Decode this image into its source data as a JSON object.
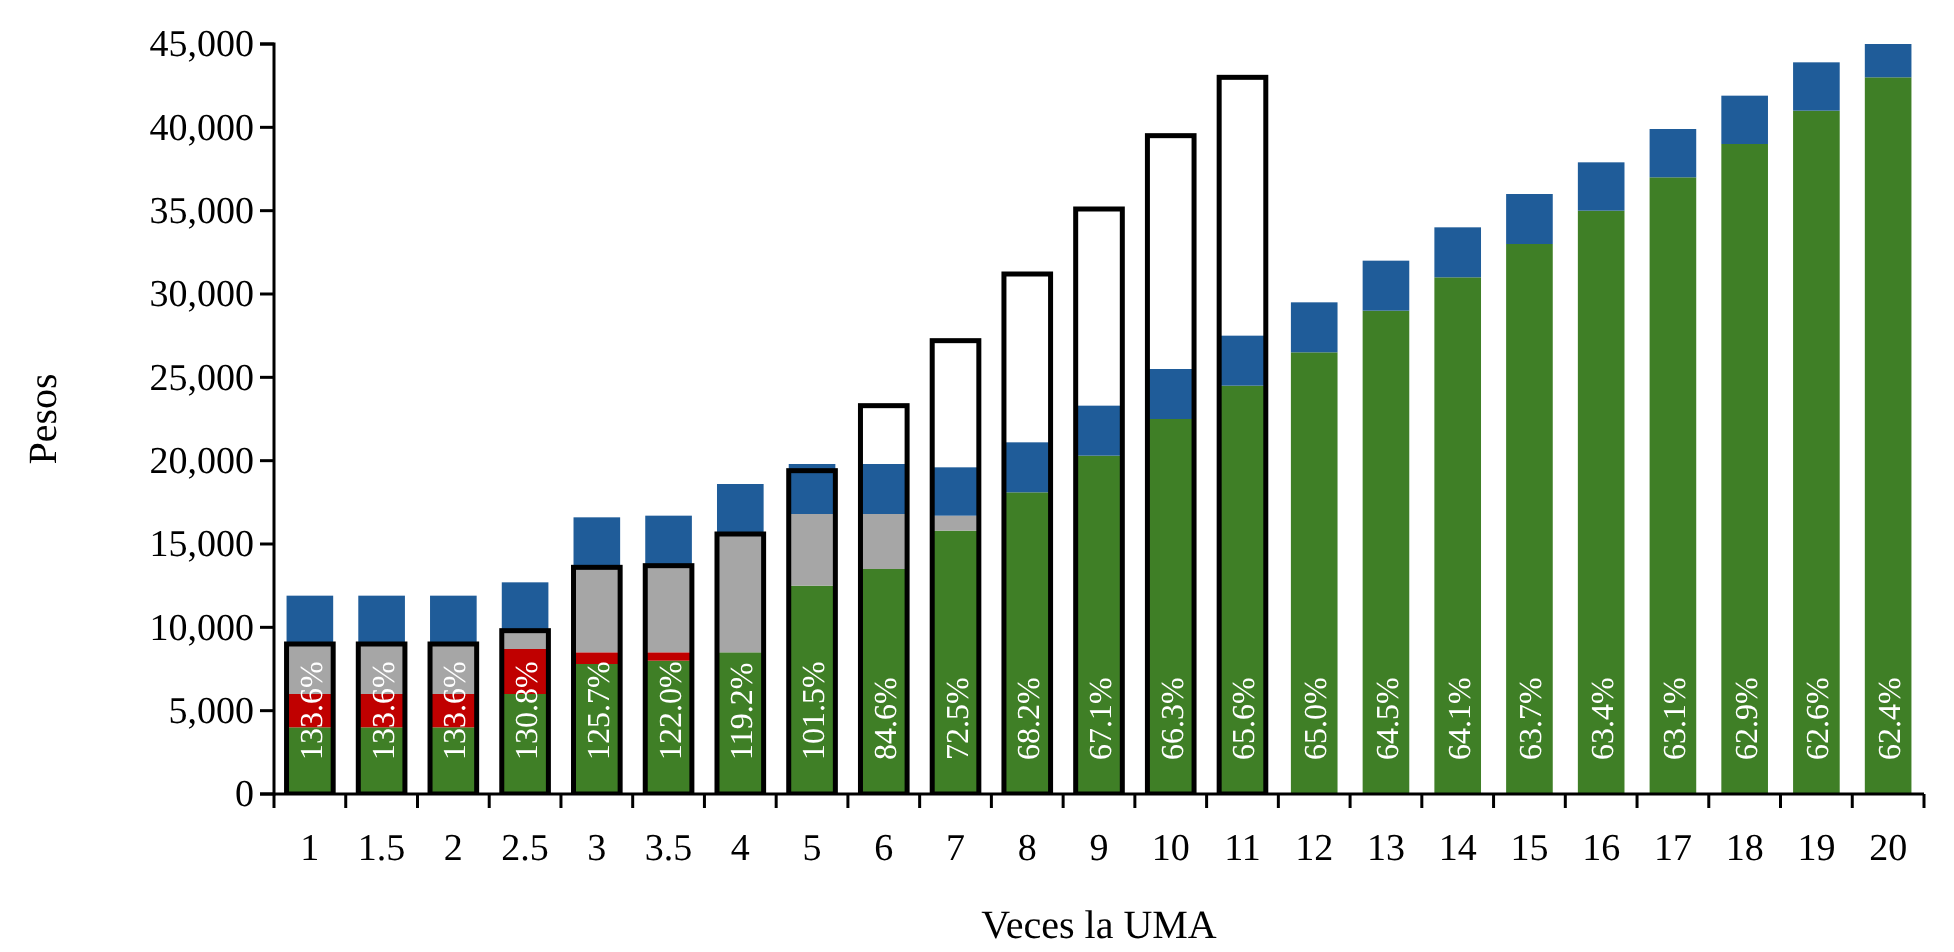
{
  "chart_data": [
    {
      "type": "bar",
      "stacked": true,
      "xlabel": "Veces la UMA",
      "ylabel": "Pesos",
      "categories": [
        "1",
        "1.5",
        "2",
        "2.5",
        "3",
        "3.5",
        "4",
        "5",
        "6",
        "7",
        "8",
        "9",
        "10",
        "11",
        "12",
        "13",
        "14",
        "15",
        "16",
        "17",
        "18",
        "19",
        "20"
      ],
      "ylim": [
        0,
        45000
      ],
      "yticks": [
        {
          "value": 0,
          "label": "0"
        },
        {
          "value": 5000,
          "label": "5,000"
        },
        {
          "value": 10000,
          "label": "10,000"
        },
        {
          "value": 15000,
          "label": "15,000"
        },
        {
          "value": 20000,
          "label": "20,000"
        },
        {
          "value": 25000,
          "label": "25,000"
        },
        {
          "value": 30000,
          "label": "30,000"
        },
        {
          "value": 35000,
          "label": "35,000"
        },
        {
          "value": 40000,
          "label": "40,000"
        },
        {
          "value": 45000,
          "label": "45,000"
        }
      ],
      "grid": false,
      "series": [
        {
          "color": "#3f7f26",
          "values": [
            4000,
            4000,
            4000,
            6000,
            7800,
            8000,
            8500,
            12500,
            13500,
            15800,
            18100,
            20300,
            22500,
            24500,
            26500,
            29000,
            31000,
            33000,
            35000,
            37000,
            39000,
            41000,
            43000
          ]
        },
        {
          "color": "#c00000",
          "values": [
            2000,
            2000,
            2000,
            2700,
            700,
            500,
            null,
            null,
            null,
            null,
            null,
            null,
            null,
            null,
            null,
            null,
            null,
            null,
            null,
            null,
            null,
            null,
            null
          ]
        },
        {
          "color": "#a6a6a6",
          "values": [
            3000,
            3000,
            3000,
            1100,
            5100,
            5200,
            7100,
            4300,
            3300,
            900,
            null,
            null,
            null,
            null,
            null,
            null,
            null,
            null,
            null,
            null,
            null,
            null,
            null
          ]
        },
        {
          "color": "#1f5c99",
          "values": [
            2900,
            2900,
            2900,
            2900,
            3000,
            3000,
            3000,
            3000,
            3000,
            2900,
            3000,
            3000,
            3000,
            3000,
            3000,
            3000,
            3000,
            3000,
            2900,
            2900,
            2900,
            2900,
            2000
          ]
        }
      ],
      "annotations": [
        "133.6%",
        "133.6%",
        "133.6%",
        "130.8%",
        "125.7%",
        "122.0%",
        "119.2%",
        "101.5%",
        "84.6%",
        "72.5%",
        "68.2%",
        "67.1%",
        "66.3%",
        "65.6%",
        "65.0%",
        "64.5%",
        "64.1%",
        "63.7%",
        "63.4%",
        "63.1%",
        "62.9%",
        "62.6%",
        "62.4%"
      ]
    },
    {
      "type": "bar",
      "tick_labels": false,
      "categories": [
        "1",
        "1.5",
        "2",
        "2.5",
        "3",
        "3.5",
        "4",
        "5",
        "6",
        "7",
        "8",
        "9",
        "10",
        "11"
      ],
      "ylim": [
        0,
        45000
      ],
      "series": [
        {
          "color": "#000000",
          "values": [
            9000,
            9000,
            9000,
            9800,
            13600,
            13700,
            15600,
            19400,
            23300,
            27200,
            31200,
            35100,
            39500,
            43000
          ]
        }
      ]
    }
  ]
}
